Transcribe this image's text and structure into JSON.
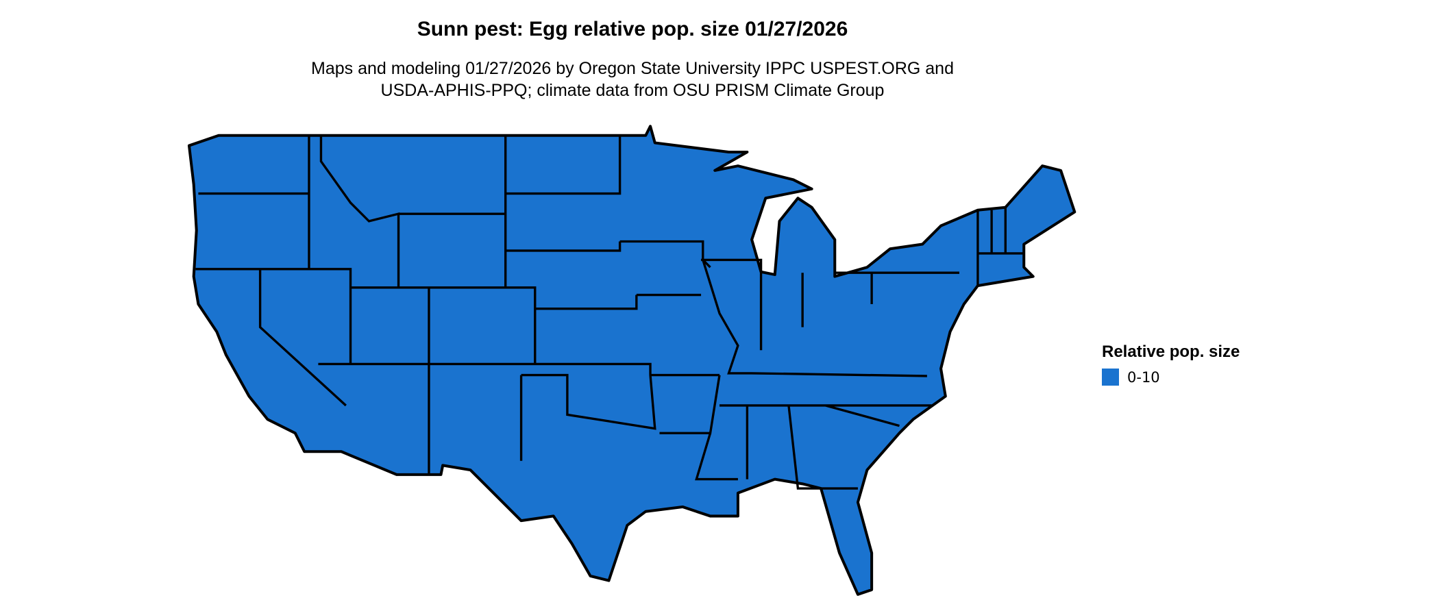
{
  "title": "Sunn pest: Egg relative pop. size 01/27/2026",
  "subtitle_line1": "Maps and modeling 01/27/2026 by Oregon State University IPPC USPEST.ORG and",
  "subtitle_line2": "USDA-APHIS-PPQ; climate data from OSU PRISM Climate Group",
  "map": {
    "region": "Contiguous United States",
    "fill_color": "#1a73cf",
    "border_color": "#000000"
  },
  "legend": {
    "title": "Relative pop. size",
    "items": [
      {
        "label": "0-10",
        "color": "#1a73cf"
      }
    ]
  }
}
